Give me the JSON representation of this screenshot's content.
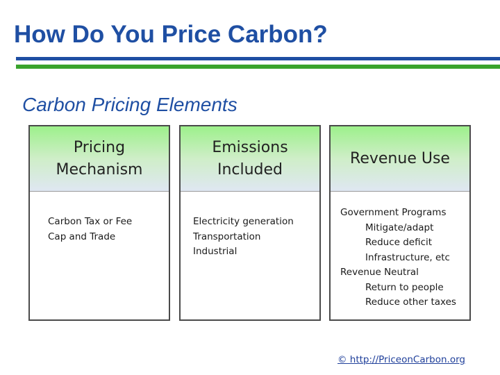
{
  "title": "How Do You Price Carbon?",
  "subtitle": "Carbon Pricing Elements",
  "columns": [
    {
      "header": [
        "Pricing",
        "Mechanism"
      ],
      "items": [
        "Carbon Tax or Fee",
        "Cap and Trade"
      ]
    },
    {
      "header": [
        "Emissions",
        "Included"
      ],
      "items": [
        "Electricity generation",
        "Transportation",
        "Industrial"
      ]
    },
    {
      "header": [
        "Revenue Use"
      ],
      "items": [
        {
          "text": "Government Programs",
          "indent": 0
        },
        {
          "text": "Mitigate/adapt",
          "indent": 1
        },
        {
          "text": "Reduce deficit",
          "indent": 1
        },
        {
          "text": "Infrastructure, etc",
          "indent": 1
        },
        {
          "text": "Revenue Neutral",
          "indent": 0
        },
        {
          "text": "Return to people",
          "indent": 1
        },
        {
          "text": "Reduce other taxes",
          "indent": 1
        }
      ]
    }
  ],
  "footer": "© http://PriceonCarbon.org",
  "colors": {
    "title_blue": "#1f4fa3",
    "rule_blue": "#1f4fa3",
    "rule_green": "#3aa32c",
    "header_green": "#9df08b"
  }
}
